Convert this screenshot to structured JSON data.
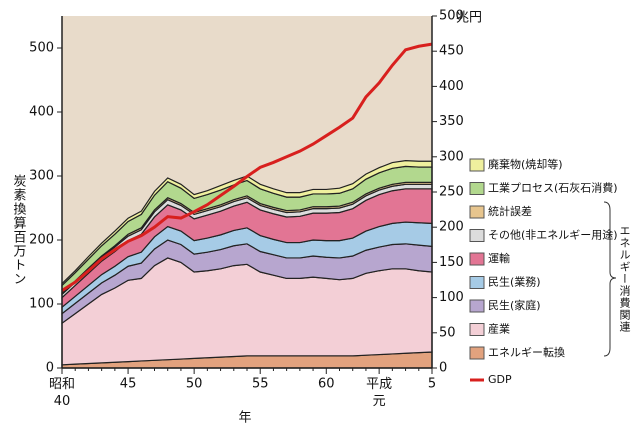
{
  "chart_data": {
    "type": "stacked_area",
    "y_label": "炭素換算百万トン",
    "y2_label": "兆円",
    "x_label": "年",
    "group_label": "エネルギー消費関連",
    "categories": [
      "昭和\n40",
      null,
      null,
      null,
      null,
      "45",
      null,
      null,
      null,
      null,
      "50",
      null,
      null,
      null,
      null,
      "55",
      null,
      null,
      null,
      null,
      "60",
      null,
      null,
      null,
      "平成\n元",
      null,
      null,
      null,
      "5"
    ],
    "ylim": [
      0,
      550
    ],
    "yticks": [
      0,
      100,
      200,
      300,
      400,
      500
    ],
    "y2lim": [
      0,
      500
    ],
    "y2ticks": [
      0,
      50,
      100,
      150,
      200,
      250,
      300,
      350,
      400,
      450,
      500
    ],
    "series": [
      {
        "name": "エネルギー転換",
        "color": "#e2a27e",
        "values": [
          5,
          6,
          7,
          8,
          9,
          10,
          11,
          12,
          13,
          14,
          15,
          16,
          17,
          18,
          19,
          19,
          19,
          19,
          19,
          19,
          19,
          19,
          19,
          20,
          21,
          22,
          23,
          24,
          25
        ]
      },
      {
        "name": "産業",
        "color": "#f3cfd6",
        "values": [
          65,
          79,
          93,
          107,
          116,
          127,
          129,
          148,
          159,
          151,
          135,
          136,
          138,
          142,
          143,
          131,
          126,
          121,
          121,
          123,
          121,
          119,
          121,
          128,
          131,
          133,
          132,
          128,
          125
        ]
      },
      {
        "name": "民生(家庭)",
        "color": "#b7a6cf",
        "values": [
          15,
          16,
          17,
          18,
          20,
          22,
          24,
          26,
          28,
          28,
          28,
          29,
          30,
          31,
          32,
          32,
          32,
          32,
          32,
          33,
          33,
          34,
          35,
          36,
          37,
          38,
          39,
          40,
          40
        ]
      },
      {
        "name": "民生(業務)",
        "color": "#a6cbe6",
        "values": [
          10,
          11,
          12,
          13,
          14,
          15,
          17,
          19,
          21,
          21,
          21,
          22,
          23,
          24,
          25,
          25,
          24,
          24,
          24,
          25,
          26,
          27,
          28,
          30,
          32,
          33,
          34,
          35,
          36
        ]
      },
      {
        "name": "運輸",
        "color": "#e27594",
        "values": [
          15,
          17,
          19,
          21,
          23,
          25,
          28,
          31,
          34,
          33,
          34,
          36,
          37,
          38,
          40,
          40,
          40,
          40,
          41,
          42,
          43,
          44,
          46,
          48,
          50,
          51,
          52,
          53,
          54
        ]
      },
      {
        "name": "その他(非エネルギー用途)",
        "color": "#dcdcdc",
        "values": [
          5,
          5,
          6,
          6,
          7,
          7,
          7,
          8,
          8,
          7,
          7,
          7,
          7,
          7,
          7,
          7,
          7,
          7,
          7,
          7,
          7,
          7,
          7,
          7,
          7,
          7,
          7,
          7,
          7
        ]
      },
      {
        "name": "統計誤差",
        "color": "#e7c58e",
        "values": [
          2,
          2,
          2,
          2,
          2,
          3,
          3,
          3,
          3,
          3,
          3,
          3,
          3,
          3,
          3,
          3,
          3,
          3,
          3,
          3,
          3,
          3,
          3,
          3,
          3,
          3,
          3,
          3,
          3
        ]
      },
      {
        "name": "工業プロセス(石灰石消費)",
        "color": "#b2d88e",
        "values": [
          12,
          13,
          14,
          16,
          18,
          20,
          21,
          23,
          25,
          24,
          22,
          22,
          23,
          23,
          24,
          23,
          22,
          21,
          20,
          20,
          20,
          20,
          21,
          23,
          24,
          25,
          25,
          24,
          24
        ]
      },
      {
        "name": "廃棄物(焼却等)",
        "color": "#eff09e",
        "values": [
          3,
          3,
          4,
          4,
          5,
          5,
          5,
          6,
          6,
          6,
          6,
          6,
          7,
          7,
          7,
          7,
          7,
          7,
          7,
          7,
          7,
          8,
          8,
          8,
          8,
          9,
          9,
          9,
          9
        ]
      },
      {
        "name": "GDP",
        "type": "line",
        "axis": "y2",
        "color": "#d8201e",
        "values": [
          110,
          122,
          138,
          155,
          168,
          180,
          188,
          200,
          215,
          213,
          222,
          232,
          245,
          258,
          272,
          285,
          292,
          300,
          308,
          318,
          330,
          342,
          355,
          385,
          405,
          430,
          452,
          457,
          460
        ]
      }
    ]
  }
}
